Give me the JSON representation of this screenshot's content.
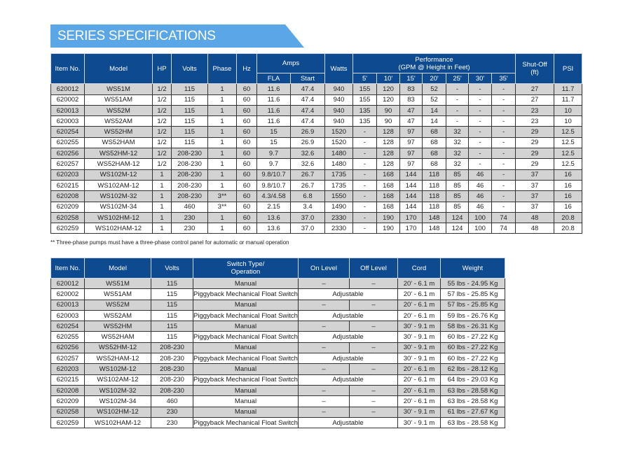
{
  "title": "SERIES SPECIFICATIONS",
  "specs": {
    "headers": {
      "item": "Item No.",
      "model": "Model",
      "hp": "HP",
      "volts": "Volts",
      "phase": "Phase",
      "hz": "Hz",
      "amps": "Amps",
      "fla": "FLA",
      "start": "Start",
      "watts": "Watts",
      "performance": "Performance",
      "performance_sub": "(GPM @ Height in Feet)",
      "heights": [
        "5'",
        "10'",
        "15'",
        "20'",
        "25'",
        "30'",
        "35'"
      ],
      "shutoff": "Shut-Off",
      "shutoff_sub": "(ft)",
      "psi": "PSI"
    },
    "rows": [
      [
        "620012",
        "WS51M",
        "1/2",
        "115",
        "1",
        "60",
        "11.6",
        "47.4",
        "940",
        "155",
        "120",
        "83",
        "52",
        "-",
        "-",
        "-",
        "27",
        "11.7"
      ],
      [
        "620002",
        "WS51AM",
        "1/2",
        "115",
        "1",
        "60",
        "11.6",
        "47.4",
        "940",
        "155",
        "120",
        "83",
        "52",
        "-",
        "-",
        "-",
        "27",
        "11.7"
      ],
      [
        "620013",
        "WS52M",
        "1/2",
        "115",
        "1",
        "60",
        "11.6",
        "47.4",
        "940",
        "135",
        "90",
        "47",
        "14",
        "-",
        "-",
        "-",
        "23",
        "10"
      ],
      [
        "620003",
        "WS52AM",
        "1/2",
        "115",
        "1",
        "60",
        "11.6",
        "47.4",
        "940",
        "135",
        "90",
        "47",
        "14",
        "-",
        "-",
        "-",
        "23",
        "10"
      ],
      [
        "620254",
        "WS52HM",
        "1/2",
        "115",
        "1",
        "60",
        "15",
        "26.9",
        "1520",
        "-",
        "128",
        "97",
        "68",
        "32",
        "-",
        "-",
        "29",
        "12.5"
      ],
      [
        "620255",
        "WS52HAM",
        "1/2",
        "115",
        "1",
        "60",
        "15",
        "26.9",
        "1520",
        "-",
        "128",
        "97",
        "68",
        "32",
        "-",
        "-",
        "29",
        "12.5"
      ],
      [
        "620256",
        "WS52HM-12",
        "1/2",
        "208-230",
        "1",
        "60",
        "9.7",
        "32.6",
        "1480",
        "-",
        "128",
        "97",
        "68",
        "32",
        "-",
        "-",
        "29",
        "12.5"
      ],
      [
        "620257",
        "WS52HAM-12",
        "1/2",
        "208-230",
        "1",
        "60",
        "9.7",
        "32.6",
        "1480",
        "-",
        "128",
        "97",
        "68",
        "32",
        "-",
        "-",
        "29",
        "12.5"
      ],
      [
        "620203",
        "WS102M-12",
        "1",
        "208-230",
        "1",
        "60",
        "9.8/10.7",
        "26.7",
        "1735",
        "-",
        "168",
        "144",
        "118",
        "85",
        "46",
        "-",
        "37",
        "16"
      ],
      [
        "620215",
        "WS102AM-12",
        "1",
        "208-230",
        "1",
        "60",
        "9.8/10.7",
        "26.7",
        "1735",
        "-",
        "168",
        "144",
        "118",
        "85",
        "46",
        "-",
        "37",
        "16"
      ],
      [
        "620208",
        "WS102M-32",
        "1",
        "208-230",
        "3**",
        "60",
        "4.3/4.58",
        "6.8",
        "1550",
        "-",
        "168",
        "144",
        "118",
        "85",
        "46",
        "-",
        "37",
        "16"
      ],
      [
        "620209",
        "WS102M-34",
        "1",
        "460",
        "3**",
        "60",
        "2.15",
        "3.4",
        "1490",
        "-",
        "168",
        "144",
        "118",
        "85",
        "46",
        "-",
        "37",
        "16"
      ],
      [
        "620258",
        "WS102HM-12",
        "1",
        "230",
        "1",
        "60",
        "13.6",
        "37.0",
        "2330",
        "-",
        "190",
        "170",
        "148",
        "124",
        "100",
        "74",
        "48",
        "20.8"
      ],
      [
        "620259",
        "WS102HAM-12",
        "1",
        "230",
        "1",
        "60",
        "13.6",
        "37.0",
        "2330",
        "-",
        "190",
        "170",
        "148",
        "124",
        "100",
        "74",
        "48",
        "20.8"
      ]
    ]
  },
  "footnote": "** Three-phase pumps must have a three-phase control panel for automatic or manual operation",
  "switches": {
    "headers": {
      "item": "Item No.",
      "model": "Model",
      "volts": "Volts",
      "switch": "Switch Type/",
      "switch_sub": "Operation",
      "on": "On Level",
      "off": "Off Level",
      "cord": "Cord",
      "weight": "Weight"
    },
    "rows": [
      [
        "620012",
        "WS51M",
        "115",
        "Manual",
        "–",
        "–",
        "20' - 6.1 m",
        "55 lbs - 24.95 Kg"
      ],
      [
        "620002",
        "WS51AM",
        "115",
        "Piggyback Mechanical Float Switch",
        "Adjustable",
        null,
        "20' - 6.1 m",
        "57 lbs - 25.85 Kg"
      ],
      [
        "620013",
        "WS52M",
        "115",
        "Manual",
        "–",
        "–",
        "20' - 6.1 m",
        "57 lbs - 25.85 Kg"
      ],
      [
        "620003",
        "WS52AM",
        "115",
        "Piggyback Mechanical Float Switch",
        "Adjustable",
        null,
        "20' - 6.1 m",
        "59 lbs - 26.76 Kg"
      ],
      [
        "620254",
        "WS52HM",
        "115",
        "Manual",
        "–",
        "–",
        "30' - 9.1 m",
        "58 lbs - 26.31 Kg"
      ],
      [
        "620255",
        "WS52HAM",
        "115",
        "Piggyback Mechanical Float Switch",
        "Adjustable",
        null,
        "30' - 9.1 m",
        "60 lbs - 27.22 Kg"
      ],
      [
        "620256",
        "WS52HM-12",
        "208-230",
        "Manual",
        "–",
        "–",
        "30' - 9.1 m",
        "60 lbs - 27.22 Kg"
      ],
      [
        "620257",
        "WS52HAM-12",
        "208-230",
        "Piggyback Mechanical Float Switch",
        "Adjustable",
        null,
        "30' - 9.1 m",
        "60 lbs - 27.22 Kg"
      ],
      [
        "620203",
        "WS102M-12",
        "208-230",
        "Manual",
        "–",
        "–",
        "20' - 6.1 m",
        "62 lbs - 28.12 Kg"
      ],
      [
        "620215",
        "WS102AM-12",
        "208-230",
        "Piggyback Mechanical Float Switch",
        "Adjustable",
        null,
        "20' - 6.1 m",
        "64 lbs - 29.03 Kg"
      ],
      [
        "620208",
        "WS102M-32",
        "208-230",
        "Manual",
        "–",
        "–",
        "20' - 6.1 m",
        "63 lbs - 28.58 Kg"
      ],
      [
        "620209",
        "WS102M-34",
        "460",
        "Manual",
        "–",
        "–",
        "20' - 6.1 m",
        "63 lbs - 28.58 Kg"
      ],
      [
        "620258",
        "WS102HM-12",
        "230",
        "Manual",
        "–",
        "–",
        "30' - 9.1 m",
        "61 lbs - 27.67 Kg"
      ],
      [
        "620259",
        "WS102HAM-12",
        "230",
        "Piggyback Mechanical Float Switch",
        "Adjustable",
        null,
        "30' - 9.1 m",
        "63 lbs - 28.58 Kg"
      ]
    ]
  }
}
